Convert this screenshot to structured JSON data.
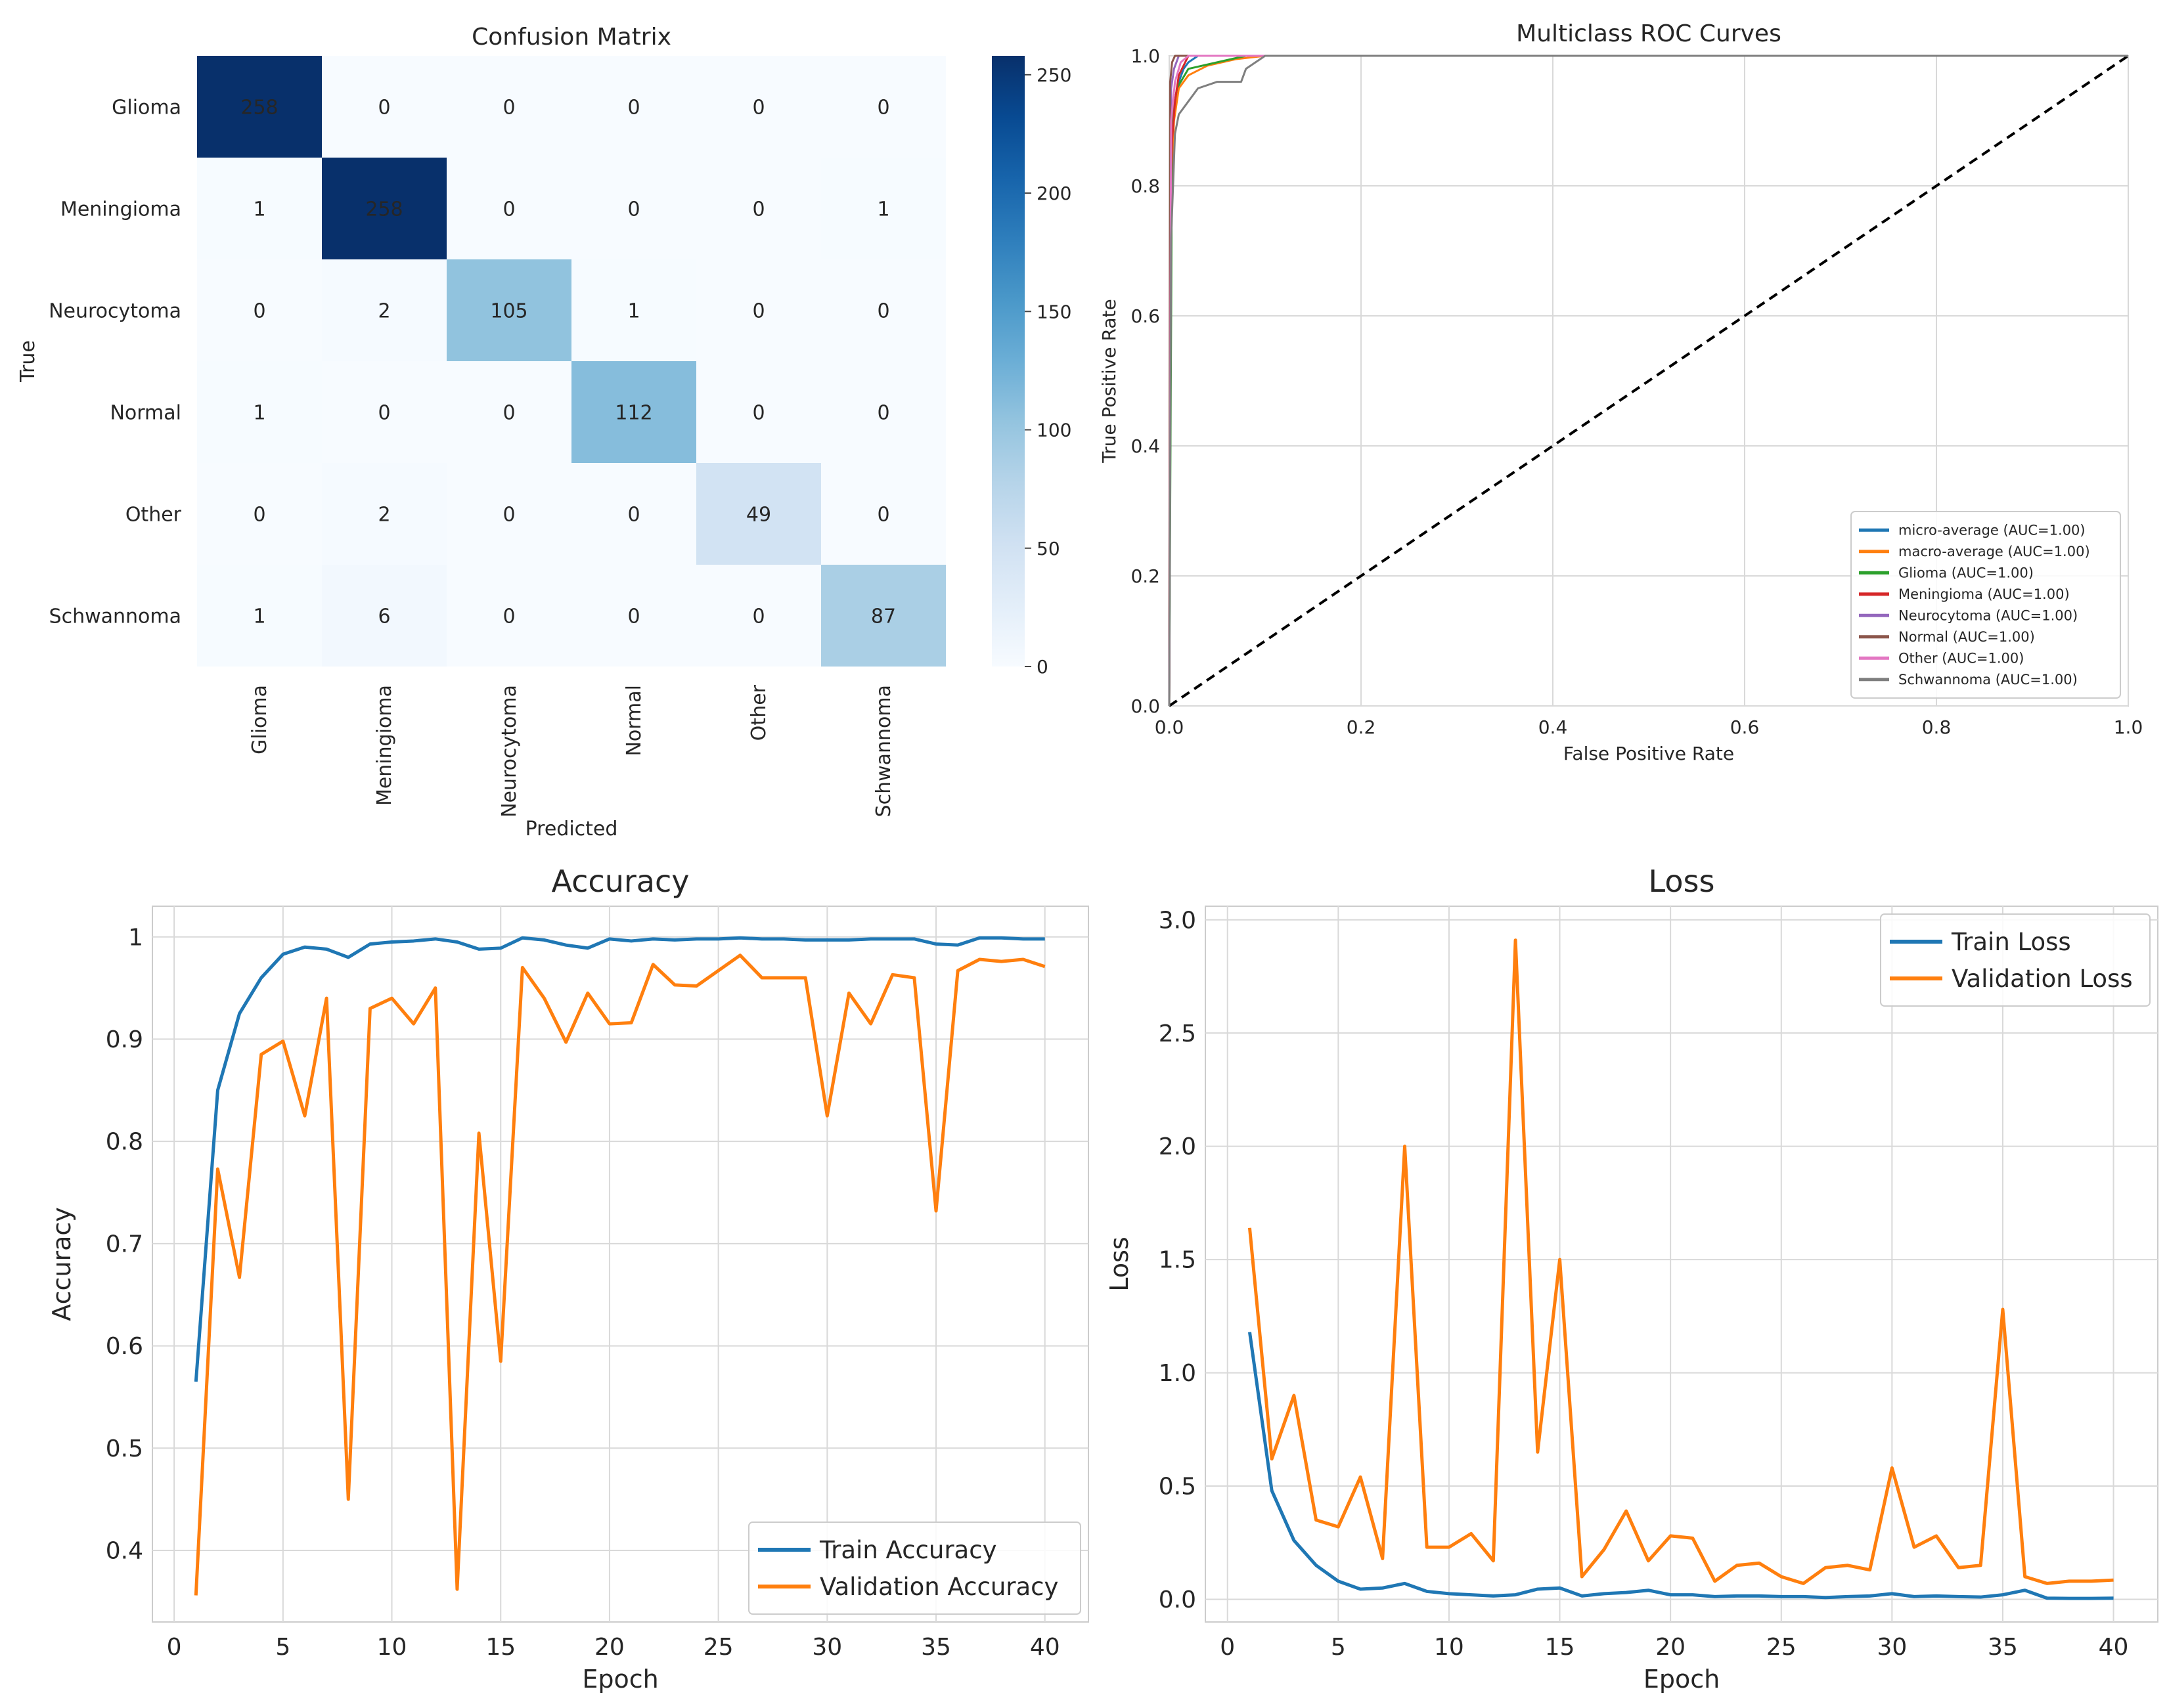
{
  "chart_data": [
    {
      "type": "heatmap",
      "title": "Confusion Matrix",
      "xlabel": "Predicted",
      "ylabel": "True",
      "row_labels": [
        "Glioma",
        "Meningioma",
        "Neurocytoma",
        "Normal",
        "Other",
        "Schwannoma"
      ],
      "col_labels": [
        "Glioma",
        "Meningioma",
        "Neurocytoma",
        "Normal",
        "Other",
        "Schwannoma"
      ],
      "values": [
        [
          258,
          0,
          0,
          0,
          0,
          0
        ],
        [
          1,
          258,
          0,
          0,
          0,
          1
        ],
        [
          0,
          2,
          105,
          1,
          0,
          0
        ],
        [
          1,
          0,
          0,
          112,
          0,
          0
        ],
        [
          0,
          2,
          0,
          0,
          49,
          0
        ],
        [
          1,
          6,
          0,
          0,
          0,
          87
        ]
      ],
      "colorbar": {
        "min": 0,
        "max": 258,
        "ticks": [
          0,
          50,
          100,
          150,
          200,
          250
        ],
        "tick_labels": [
          "0",
          "50",
          "100",
          "150",
          "200",
          "250"
        ]
      }
    },
    {
      "type": "line",
      "title": "Multiclass ROC Curves",
      "xlabel": "False Positive Rate",
      "ylabel": "True Positive Rate",
      "xlim": [
        0,
        1
      ],
      "ylim": [
        0,
        1
      ],
      "xticks": [
        "0.0",
        "0.2",
        "0.4",
        "0.6",
        "0.8",
        "1.0"
      ],
      "yticks": [
        "0.0",
        "0.2",
        "0.4",
        "0.6",
        "0.8",
        "1.0"
      ],
      "grid": true,
      "legend_position": "lower-right",
      "series": [
        {
          "name": "micro-average (AUC=1.00)",
          "color": "#1f77b4",
          "x": [
            0,
            0.002,
            0.004,
            0.006,
            0.01,
            0.015,
            0.02,
            0.03,
            1
          ],
          "y": [
            0,
            0.75,
            0.88,
            0.93,
            0.96,
            0.98,
            0.99,
            1.0,
            1.0
          ]
        },
        {
          "name": "macro-average (AUC=1.00)",
          "color": "#ff7f0e",
          "x": [
            0,
            0.002,
            0.005,
            0.01,
            0.02,
            0.04,
            0.07,
            0.1,
            1
          ],
          "y": [
            0,
            0.8,
            0.9,
            0.95,
            0.97,
            0.985,
            0.995,
            1.0,
            1.0
          ]
        },
        {
          "name": "Glioma (AUC=1.00)",
          "color": "#2ca02c",
          "x": [
            0,
            0.003,
            0.008,
            0.02,
            0.05,
            0.08,
            1
          ],
          "y": [
            0,
            0.9,
            0.95,
            0.98,
            0.99,
            1.0,
            1.0
          ]
        },
        {
          "name": "Meningioma (AUC=1.00)",
          "color": "#d62728",
          "x": [
            0,
            0.001,
            0.003,
            0.006,
            0.01,
            0.02,
            1
          ],
          "y": [
            0,
            0.77,
            0.87,
            0.93,
            0.97,
            1.0,
            1.0
          ]
        },
        {
          "name": "Neurocytoma (AUC=1.00)",
          "color": "#9467bd",
          "x": [
            0,
            0.002,
            0.005,
            0.01,
            1
          ],
          "y": [
            0,
            0.95,
            0.98,
            1.0,
            1.0
          ]
        },
        {
          "name": "Normal (AUC=1.00)",
          "color": "#8c564b",
          "x": [
            0,
            0.001,
            0.003,
            0.006,
            1
          ],
          "y": [
            0,
            0.96,
            0.99,
            1.0,
            1.0
          ]
        },
        {
          "name": "Other (AUC=1.00)",
          "color": "#e377c2",
          "x": [
            0,
            0.002,
            0.006,
            0.012,
            0.02,
            1
          ],
          "y": [
            0,
            0.9,
            0.96,
            0.99,
            1.0,
            1.0
          ]
        },
        {
          "name": "Schwannoma (AUC=1.00)",
          "color": "#7f7f7f",
          "x": [
            0,
            0.002,
            0.006,
            0.01,
            0.02,
            0.03,
            0.05,
            0.075,
            0.08,
            0.1,
            1
          ],
          "y": [
            0,
            0.72,
            0.88,
            0.91,
            0.93,
            0.95,
            0.96,
            0.96,
            0.98,
            1.0,
            1.0
          ]
        }
      ],
      "diagonal": {
        "x": [
          0,
          1
        ],
        "y": [
          0,
          1
        ],
        "style": "dashed",
        "color": "#000000"
      }
    },
    {
      "type": "line",
      "title": "Accuracy",
      "xlabel": "Epoch",
      "ylabel": "Accuracy",
      "xlim": [
        -1,
        42
      ],
      "ylim": [
        0.33,
        1.03
      ],
      "xticks": [
        0,
        5,
        10,
        15,
        20,
        25,
        30,
        35,
        40
      ],
      "yticks": [
        0.4,
        0.5,
        0.6,
        0.7,
        0.8,
        0.9,
        1.0
      ],
      "grid": true,
      "legend_position": "lower-right",
      "series": [
        {
          "name": "Train Accuracy",
          "color": "#1f77b4",
          "x": [
            1,
            2,
            3,
            4,
            5,
            6,
            7,
            8,
            9,
            10,
            11,
            12,
            13,
            14,
            15,
            16,
            17,
            18,
            19,
            20,
            21,
            22,
            23,
            24,
            25,
            26,
            27,
            28,
            29,
            30,
            31,
            32,
            33,
            34,
            35,
            36,
            37,
            38,
            39,
            40
          ],
          "values": [
            0.565,
            0.85,
            0.925,
            0.96,
            0.983,
            0.99,
            0.988,
            0.98,
            0.993,
            0.995,
            0.996,
            0.998,
            0.995,
            0.988,
            0.989,
            0.999,
            0.997,
            0.992,
            0.989,
            0.998,
            0.996,
            0.998,
            0.997,
            0.998,
            0.998,
            0.999,
            0.998,
            0.998,
            0.997,
            0.997,
            0.997,
            0.998,
            0.998,
            0.998,
            0.993,
            0.992,
            0.999,
            0.999,
            0.998,
            0.998
          ]
        },
        {
          "name": "Validation Accuracy",
          "color": "#ff7f0e",
          "x": [
            1,
            2,
            3,
            4,
            5,
            6,
            7,
            8,
            9,
            10,
            11,
            12,
            13,
            14,
            15,
            16,
            17,
            18,
            19,
            20,
            21,
            22,
            23,
            24,
            25,
            26,
            27,
            28,
            29,
            30,
            31,
            32,
            33,
            34,
            35,
            36,
            37,
            38,
            39,
            40
          ],
          "values": [
            0.356,
            0.773,
            0.667,
            0.885,
            0.898,
            0.825,
            0.94,
            0.45,
            0.93,
            0.94,
            0.915,
            0.95,
            0.362,
            0.808,
            0.585,
            0.97,
            0.94,
            0.897,
            0.945,
            0.915,
            0.916,
            0.973,
            0.953,
            0.952,
            0.967,
            0.982,
            0.96,
            0.96,
            0.96,
            0.825,
            0.945,
            0.915,
            0.963,
            0.96,
            0.732,
            0.967,
            0.978,
            0.976,
            0.978,
            0.971
          ]
        }
      ]
    },
    {
      "type": "line",
      "title": "Loss",
      "xlabel": "Epoch",
      "ylabel": "Loss",
      "xlim": [
        -1,
        42
      ],
      "ylim": [
        -0.1,
        3.06
      ],
      "xticks": [
        0,
        5,
        10,
        15,
        20,
        25,
        30,
        35,
        40
      ],
      "yticks": [
        "0.0",
        "0.5",
        "1.0",
        "1.5",
        "2.0",
        "2.5",
        "3.0"
      ],
      "grid": true,
      "legend_position": "top-right",
      "series": [
        {
          "name": "Train Loss",
          "color": "#1f77b4",
          "x": [
            1,
            2,
            3,
            4,
            5,
            6,
            7,
            8,
            9,
            10,
            11,
            12,
            13,
            14,
            15,
            16,
            17,
            18,
            19,
            20,
            21,
            22,
            23,
            24,
            25,
            26,
            27,
            28,
            29,
            30,
            31,
            32,
            33,
            34,
            35,
            36,
            37,
            38,
            39,
            40
          ],
          "values": [
            1.18,
            0.48,
            0.26,
            0.15,
            0.08,
            0.045,
            0.05,
            0.07,
            0.035,
            0.025,
            0.02,
            0.015,
            0.02,
            0.045,
            0.05,
            0.015,
            0.025,
            0.03,
            0.04,
            0.02,
            0.02,
            0.012,
            0.015,
            0.015,
            0.012,
            0.012,
            0.008,
            0.012,
            0.015,
            0.025,
            0.012,
            0.015,
            0.012,
            0.01,
            0.02,
            0.04,
            0.005,
            0.004,
            0.004,
            0.005
          ]
        },
        {
          "name": "Validation Loss",
          "color": "#ff7f0e",
          "x": [
            1,
            2,
            3,
            4,
            5,
            6,
            7,
            8,
            9,
            10,
            11,
            12,
            13,
            14,
            15,
            16,
            17,
            18,
            19,
            20,
            21,
            22,
            23,
            24,
            25,
            26,
            27,
            28,
            29,
            30,
            31,
            32,
            33,
            34,
            35,
            36,
            37,
            38,
            39,
            40
          ],
          "values": [
            1.64,
            0.62,
            0.9,
            0.35,
            0.32,
            0.54,
            0.18,
            2.0,
            0.23,
            0.23,
            0.29,
            0.17,
            2.91,
            0.65,
            1.5,
            0.1,
            0.22,
            0.39,
            0.17,
            0.28,
            0.27,
            0.08,
            0.15,
            0.16,
            0.1,
            0.07,
            0.14,
            0.15,
            0.13,
            0.58,
            0.23,
            0.28,
            0.14,
            0.15,
            1.28,
            0.1,
            0.07,
            0.08,
            0.08,
            0.085
          ]
        }
      ]
    }
  ]
}
